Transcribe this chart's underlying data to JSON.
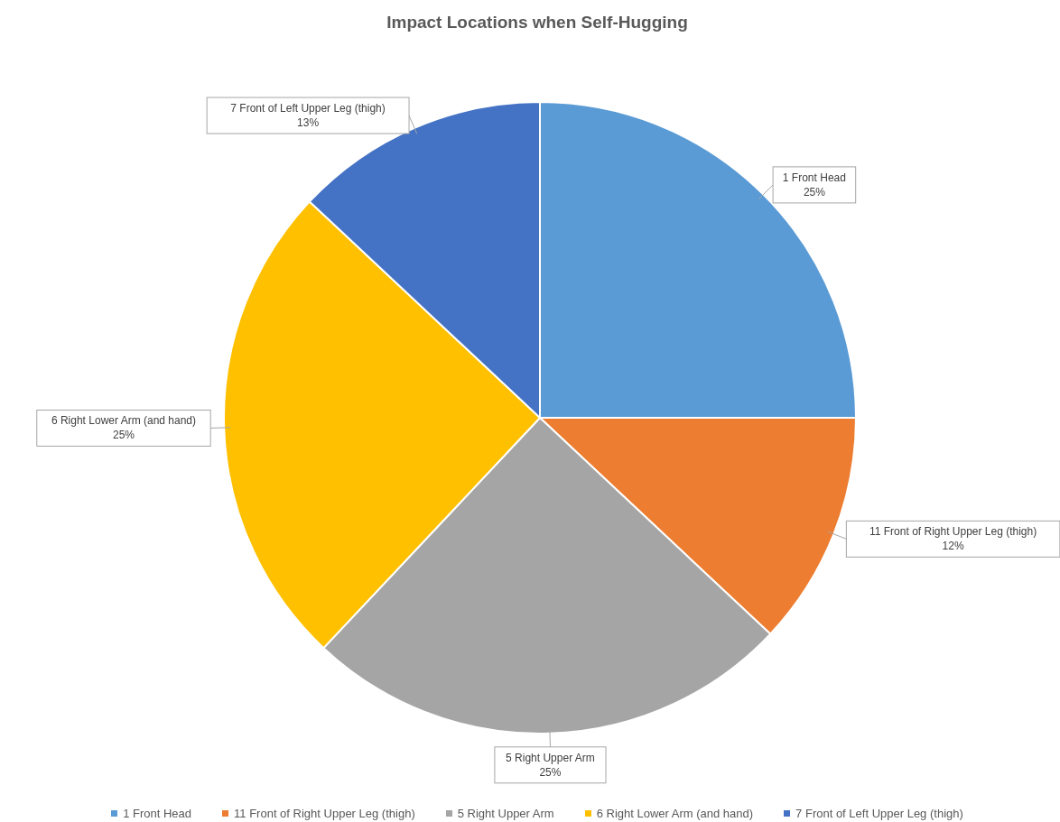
{
  "chart_data": {
    "type": "pie",
    "title": "Impact Locations when Self-Hugging",
    "categories": [
      "1 Front Head",
      "11 Front of Right Upper Leg (thigh)",
      "5 Right Upper Arm",
      "6 Right Lower Arm (and hand)",
      "7 Front of Left Upper Leg (thigh)"
    ],
    "values": [
      25,
      12,
      25,
      25,
      13
    ],
    "value_labels": [
      "25%",
      "12%",
      "25%",
      "25%",
      "13%"
    ],
    "colors": [
      "#5b9bd5",
      "#ed7d31",
      "#a5a5a5",
      "#ffc000",
      "#4472c4"
    ],
    "legend": "bottom"
  }
}
